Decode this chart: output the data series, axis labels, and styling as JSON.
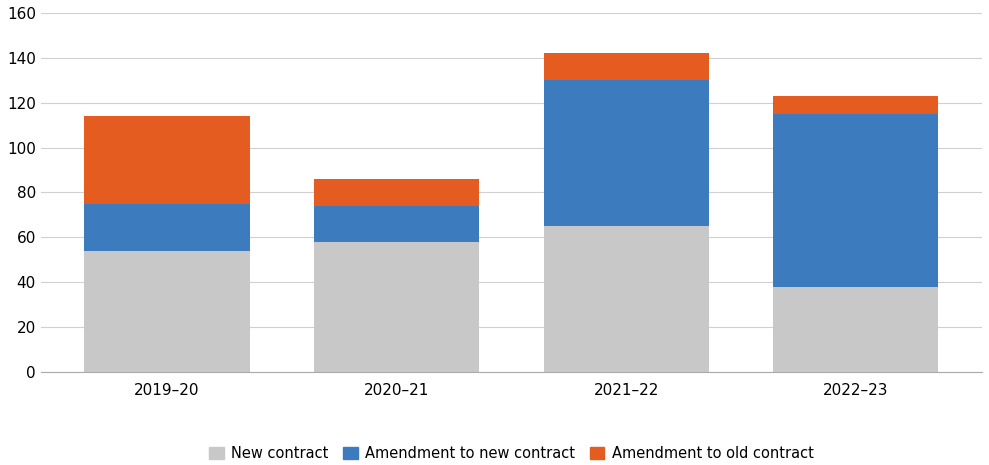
{
  "categories": [
    "2019–20",
    "2020–21",
    "2021–22",
    "2022–23"
  ],
  "new_contract": [
    54,
    58,
    65,
    38
  ],
  "amendment_to_new_contract": [
    21,
    16,
    65,
    77
  ],
  "amendment_to_old_contract": [
    39,
    12,
    12,
    8
  ],
  "color_new_contract": "#c8c8c8",
  "color_amend_new": "#3d7bbf",
  "color_amend_old": "#e55c20",
  "ylim": [
    0,
    160
  ],
  "yticks": [
    0,
    20,
    40,
    60,
    80,
    100,
    120,
    140,
    160
  ],
  "legend_labels": [
    "New contract",
    "Amendment to new contract",
    "Amendment to old contract"
  ],
  "bar_width": 0.72
}
